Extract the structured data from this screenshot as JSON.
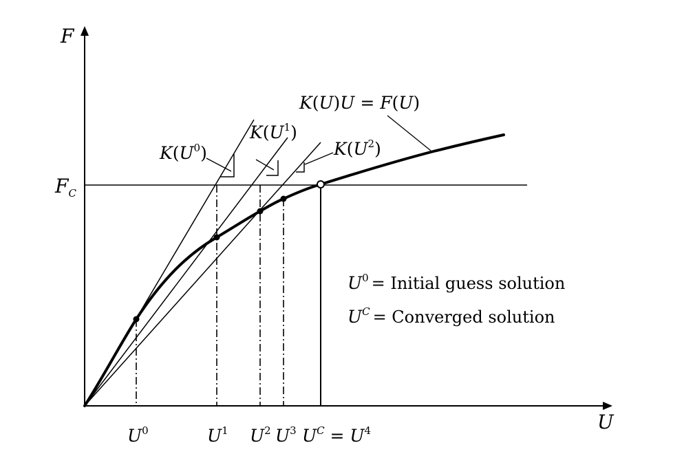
{
  "axes": {
    "y_label": "F",
    "x_label": "U",
    "fc_main": "F",
    "fc_sub": "C"
  },
  "curve_label": {
    "k": "K",
    "lp": "(",
    "u": "U",
    "rp": ")",
    "u2": "U",
    "eq": " = ",
    "f": "F",
    "lp2": "(",
    "u3": "U",
    "rp2": ")"
  },
  "tangents": [
    {
      "k": "K",
      "open": "(",
      "u": "U",
      "sup": "0",
      "close": ")"
    },
    {
      "k": "K",
      "open": "(",
      "u": "U",
      "sup": "1",
      "close": ")"
    },
    {
      "k": "K",
      "open": "(",
      "u": "U",
      "sup": "2",
      "close": ")"
    }
  ],
  "x_ticks": [
    {
      "base": "U",
      "sup": "0"
    },
    {
      "base": "U",
      "sup": "1"
    },
    {
      "base": "U",
      "sup": "2"
    },
    {
      "base": "U",
      "sup": "3"
    }
  ],
  "converged_tick": {
    "base": "U",
    "sup": "C",
    "eq": " = ",
    "base2": "U",
    "sup2": "4"
  },
  "legend": [
    {
      "base": "U",
      "sup": "0",
      "text": "= Initial guess solution"
    },
    {
      "base": "U",
      "sup": "C",
      "text": "= Converged solution"
    }
  ]
}
